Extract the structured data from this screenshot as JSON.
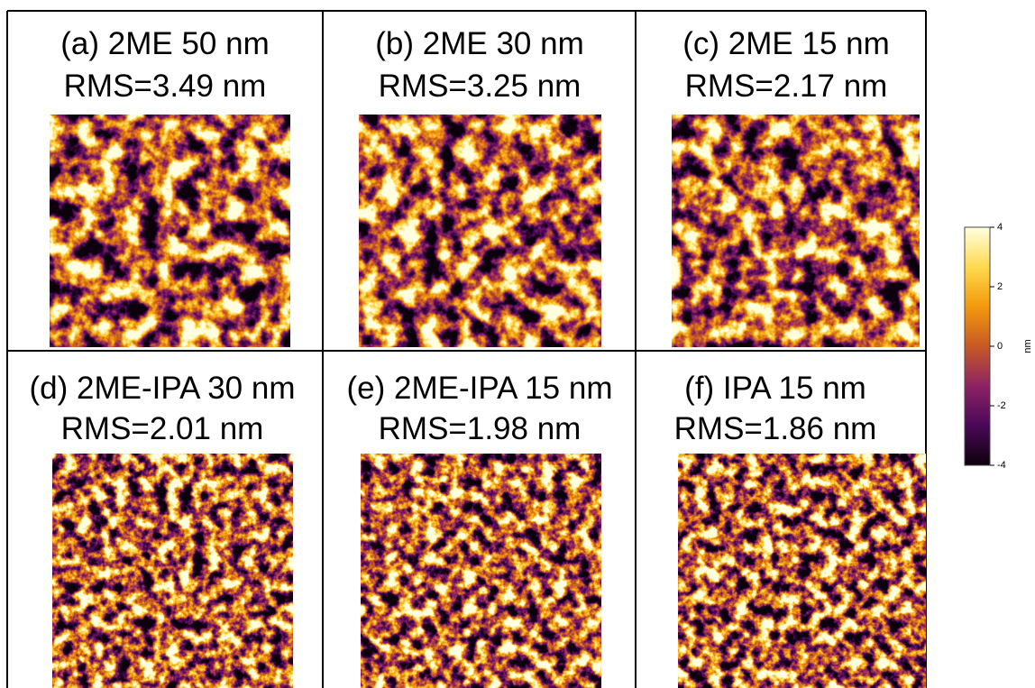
{
  "panels": [
    {
      "title": "(a) 2ME 50 nm",
      "rms": "RMS=3.49 nm"
    },
    {
      "title": "(b) 2ME 30 nm",
      "rms": "RMS=3.25 nm"
    },
    {
      "title": "(c) 2ME 15 nm",
      "rms": "RMS=2.17 nm"
    },
    {
      "title": "(d) 2ME-IPA 30 nm",
      "rms": "RMS=2.01 nm"
    },
    {
      "title": "(e) 2ME-IPA 15 nm",
      "rms": "RMS=1.98 nm"
    },
    {
      "title": "(f) IPA 15 nm",
      "rms": "RMS=1.86 nm"
    }
  ],
  "colorbar": {
    "range": [
      -4,
      4
    ],
    "ticks": [
      4,
      2,
      0,
      -2,
      -4
    ],
    "label": "nm"
  }
}
